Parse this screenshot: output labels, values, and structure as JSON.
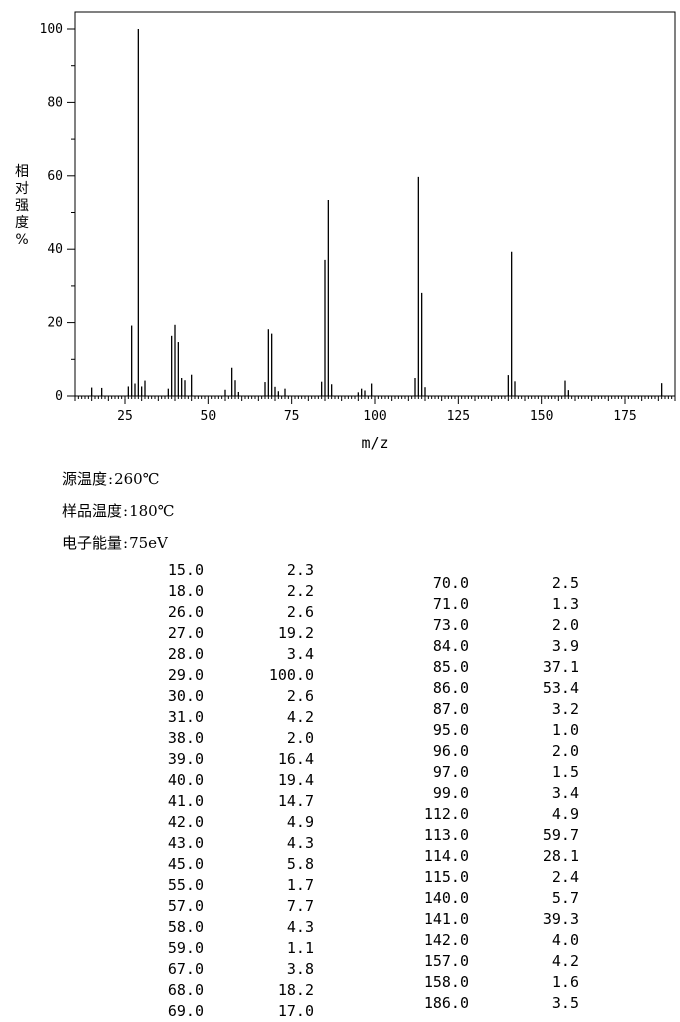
{
  "chart_data": {
    "type": "bar",
    "subtype": "mass-spectrum",
    "xlabel": "m/z",
    "ylabel": "相对强度%",
    "xlim": [
      10,
      190
    ],
    "ylim": [
      0,
      100
    ],
    "xticks": [
      25,
      50,
      75,
      100,
      125,
      150,
      175
    ],
    "yticks": [
      0,
      20,
      40,
      60,
      80,
      100
    ],
    "grid": false,
    "peaks": [
      {
        "mz": 15,
        "rel": 2.3
      },
      {
        "mz": 18,
        "rel": 2.2
      },
      {
        "mz": 26,
        "rel": 2.6
      },
      {
        "mz": 27,
        "rel": 19.2
      },
      {
        "mz": 28,
        "rel": 3.4
      },
      {
        "mz": 29,
        "rel": 100.0
      },
      {
        "mz": 30,
        "rel": 2.6
      },
      {
        "mz": 31,
        "rel": 4.2
      },
      {
        "mz": 38,
        "rel": 2.0
      },
      {
        "mz": 39,
        "rel": 16.4
      },
      {
        "mz": 40,
        "rel": 19.4
      },
      {
        "mz": 41,
        "rel": 14.7
      },
      {
        "mz": 42,
        "rel": 4.9
      },
      {
        "mz": 43,
        "rel": 4.3
      },
      {
        "mz": 45,
        "rel": 5.8
      },
      {
        "mz": 55,
        "rel": 1.7
      },
      {
        "mz": 57,
        "rel": 7.7
      },
      {
        "mz": 58,
        "rel": 4.3
      },
      {
        "mz": 59,
        "rel": 1.1
      },
      {
        "mz": 67,
        "rel": 3.8
      },
      {
        "mz": 68,
        "rel": 18.2
      },
      {
        "mz": 69,
        "rel": 17.0
      },
      {
        "mz": 70,
        "rel": 2.5
      },
      {
        "mz": 71,
        "rel": 1.3
      },
      {
        "mz": 73,
        "rel": 2.0
      },
      {
        "mz": 84,
        "rel": 3.9
      },
      {
        "mz": 85,
        "rel": 37.1
      },
      {
        "mz": 86,
        "rel": 53.4
      },
      {
        "mz": 87,
        "rel": 3.2
      },
      {
        "mz": 95,
        "rel": 1.0
      },
      {
        "mz": 96,
        "rel": 2.0
      },
      {
        "mz": 97,
        "rel": 1.5
      },
      {
        "mz": 99,
        "rel": 3.4
      },
      {
        "mz": 112,
        "rel": 4.9
      },
      {
        "mz": 113,
        "rel": 59.7
      },
      {
        "mz": 114,
        "rel": 28.1
      },
      {
        "mz": 115,
        "rel": 2.4
      },
      {
        "mz": 140,
        "rel": 5.7
      },
      {
        "mz": 141,
        "rel": 39.3
      },
      {
        "mz": 142,
        "rel": 4.0
      },
      {
        "mz": 157,
        "rel": 4.2
      },
      {
        "mz": 158,
        "rel": 1.6
      },
      {
        "mz": 186,
        "rel": 3.5
      }
    ]
  },
  "ylabel_chars": [
    "相",
    "对",
    "强",
    "度",
    "%"
  ],
  "conditions": {
    "source_temp_label": "源温度",
    "source_temp_value": "260℃",
    "sample_temp_label": "样品温度",
    "sample_temp_value": "180℃",
    "electron_energy_label": "电子能量",
    "electron_energy_value": "75eV"
  },
  "peak_table": {
    "left": [
      [
        "15.0",
        "2.3"
      ],
      [
        "18.0",
        "2.2"
      ],
      [
        "26.0",
        "2.6"
      ],
      [
        "27.0",
        "19.2"
      ],
      [
        "28.0",
        "3.4"
      ],
      [
        "29.0",
        "100.0"
      ],
      [
        "30.0",
        "2.6"
      ],
      [
        "31.0",
        "4.2"
      ],
      [
        "38.0",
        "2.0"
      ],
      [
        "39.0",
        "16.4"
      ],
      [
        "40.0",
        "19.4"
      ],
      [
        "41.0",
        "14.7"
      ],
      [
        "42.0",
        "4.9"
      ],
      [
        "43.0",
        "4.3"
      ],
      [
        "45.0",
        "5.8"
      ],
      [
        "55.0",
        "1.7"
      ],
      [
        "57.0",
        "7.7"
      ],
      [
        "58.0",
        "4.3"
      ],
      [
        "59.0",
        "1.1"
      ],
      [
        "67.0",
        "3.8"
      ],
      [
        "68.0",
        "18.2"
      ],
      [
        "69.0",
        "17.0"
      ]
    ],
    "right": [
      [
        "70.0",
        "2.5"
      ],
      [
        "71.0",
        "1.3"
      ],
      [
        "73.0",
        "2.0"
      ],
      [
        "84.0",
        "3.9"
      ],
      [
        "85.0",
        "37.1"
      ],
      [
        "86.0",
        "53.4"
      ],
      [
        "87.0",
        "3.2"
      ],
      [
        "95.0",
        "1.0"
      ],
      [
        "96.0",
        "2.0"
      ],
      [
        "97.0",
        "1.5"
      ],
      [
        "99.0",
        "3.4"
      ],
      [
        "112.0",
        "4.9"
      ],
      [
        "113.0",
        "59.7"
      ],
      [
        "114.0",
        "28.1"
      ],
      [
        "115.0",
        "2.4"
      ],
      [
        "140.0",
        "5.7"
      ],
      [
        "141.0",
        "39.3"
      ],
      [
        "142.0",
        "4.0"
      ],
      [
        "157.0",
        "4.2"
      ],
      [
        "158.0",
        "1.6"
      ],
      [
        "186.0",
        "3.5"
      ]
    ]
  }
}
